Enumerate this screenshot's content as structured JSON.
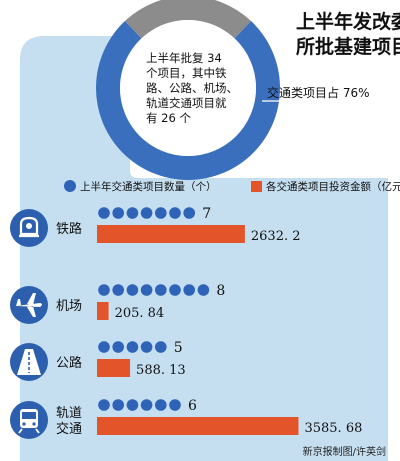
{
  "colors": {
    "band": "#c5dff1",
    "donut_blue": "#3a6fbe",
    "donut_gray": "#8c8c8c",
    "icon_blue": "#2c5fae",
    "dot_blue": "#2e63b7",
    "bar_orange": "#e3542b",
    "text_dark": "#1a1a1a"
  },
  "header": {
    "title_line1": "上半年发改委",
    "title_line2": "所批基建项目"
  },
  "donut": {
    "center_lines": [
      "上半年批复 34",
      "个项目，其中铁",
      "路、公路、机场、",
      "轨道交通项目就",
      "有 26 个"
    ],
    "callout": "交通类项目占 76%",
    "share": 0.76
  },
  "legend": {
    "count_label": "上半年交通类项目数量（个）",
    "investment_label": "各交通类项目投资金额（亿元）"
  },
  "credit": "新京报制图/许英剑",
  "chart_data": {
    "type": "bar",
    "categories": [
      "铁路",
      "机场",
      "公路",
      "轨道交通"
    ],
    "category_lines": [
      [
        "铁路"
      ],
      [
        "机场"
      ],
      [
        "公路"
      ],
      [
        "轨道",
        "交通"
      ]
    ],
    "series": [
      {
        "name": "上半年交通类项目数量（个）",
        "values": [
          7,
          8,
          5,
          6
        ]
      },
      {
        "name": "各交通类项目投资金额（亿元）",
        "values": [
          2632.2,
          205.84,
          588.13,
          3585.68
        ]
      }
    ],
    "value_labels": {
      "count": [
        "7",
        "8",
        "5",
        "6"
      ],
      "investment": [
        "2632. 2",
        "205. 84",
        "588. 13",
        "3585. 68"
      ]
    },
    "icons": [
      "train-icon",
      "airplane-icon",
      "road-icon",
      "metro-icon"
    ],
    "title": "上半年发改委所批基建项目",
    "legend_placement": "top"
  }
}
